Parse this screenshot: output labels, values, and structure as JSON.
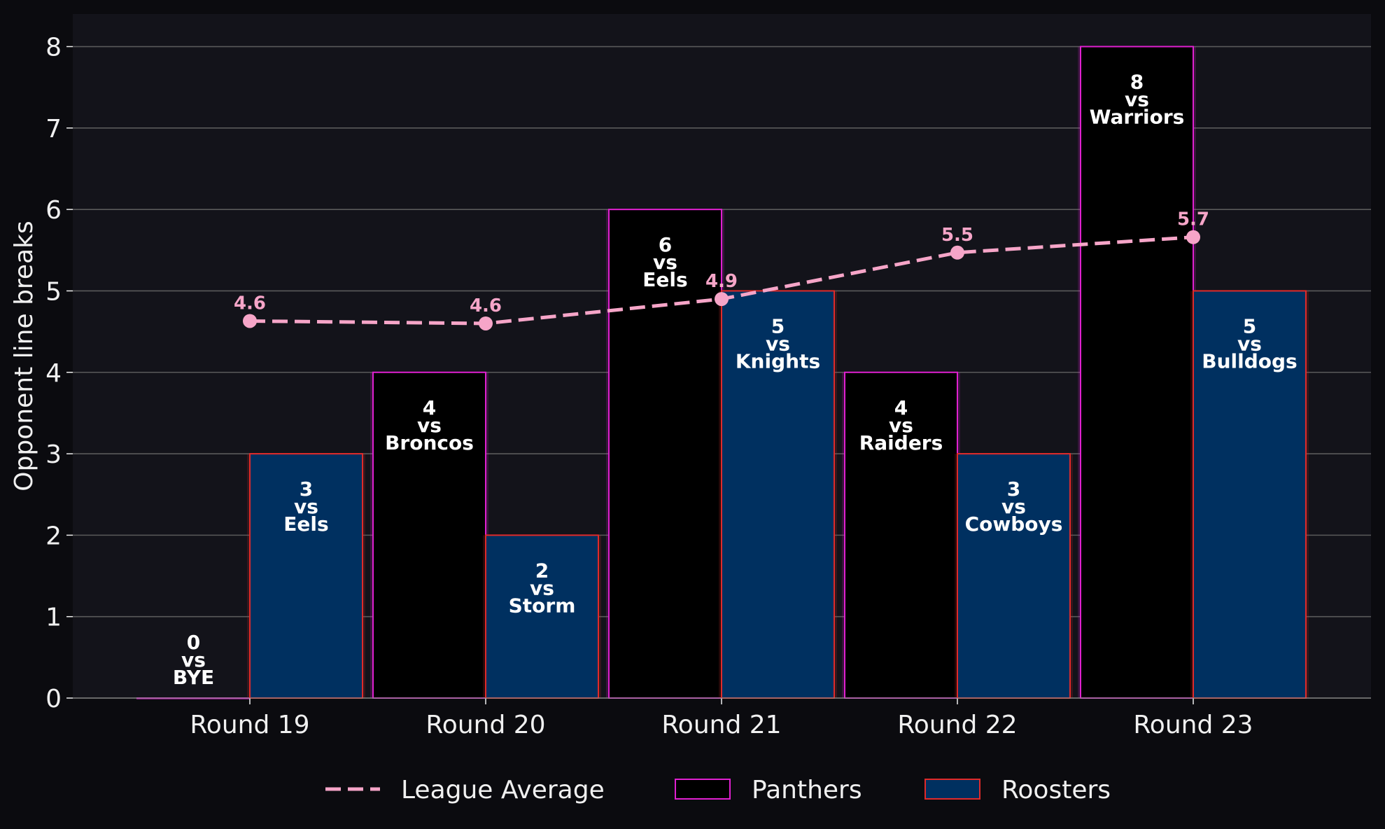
{
  "chart_data": {
    "type": "bar",
    "categories": [
      "Round 19",
      "Round 20",
      "Round 21",
      "Round 22",
      "Round 23"
    ],
    "ylabel": "Opponent line breaks",
    "ylim": [
      0,
      8.4
    ],
    "yticks": [
      0,
      1,
      2,
      3,
      4,
      5,
      6,
      7,
      8
    ],
    "grid": true,
    "legend_position": "bottom-center",
    "series": [
      {
        "name": "Panthers",
        "values": [
          0,
          4,
          6,
          4,
          8
        ],
        "opponents": [
          "BYE",
          "Broncos",
          "Eels",
          "Raiders",
          "Warriors"
        ],
        "fill": "#000000",
        "edge": "#e020d0"
      },
      {
        "name": "Roosters",
        "values": [
          3,
          2,
          5,
          3,
          5
        ],
        "opponents": [
          "Eels",
          "Storm",
          "Knights",
          "Cowboys",
          "Bulldogs"
        ],
        "fill": "#003060",
        "edge": "#e02a2a"
      }
    ],
    "average": {
      "name": "League Average",
      "values": [
        4.63,
        4.6,
        4.9,
        5.47,
        5.66
      ],
      "labels": [
        "4.6",
        "4.6",
        "4.9",
        "5.5",
        "5.7"
      ],
      "color": "#f6a5c8"
    },
    "vs_word": "vs"
  },
  "colors": {
    "page_bg": "#0b0b0f",
    "plot_bg": "#13131a",
    "grid": "#5a5a5a",
    "text": "#f0f0f0"
  }
}
